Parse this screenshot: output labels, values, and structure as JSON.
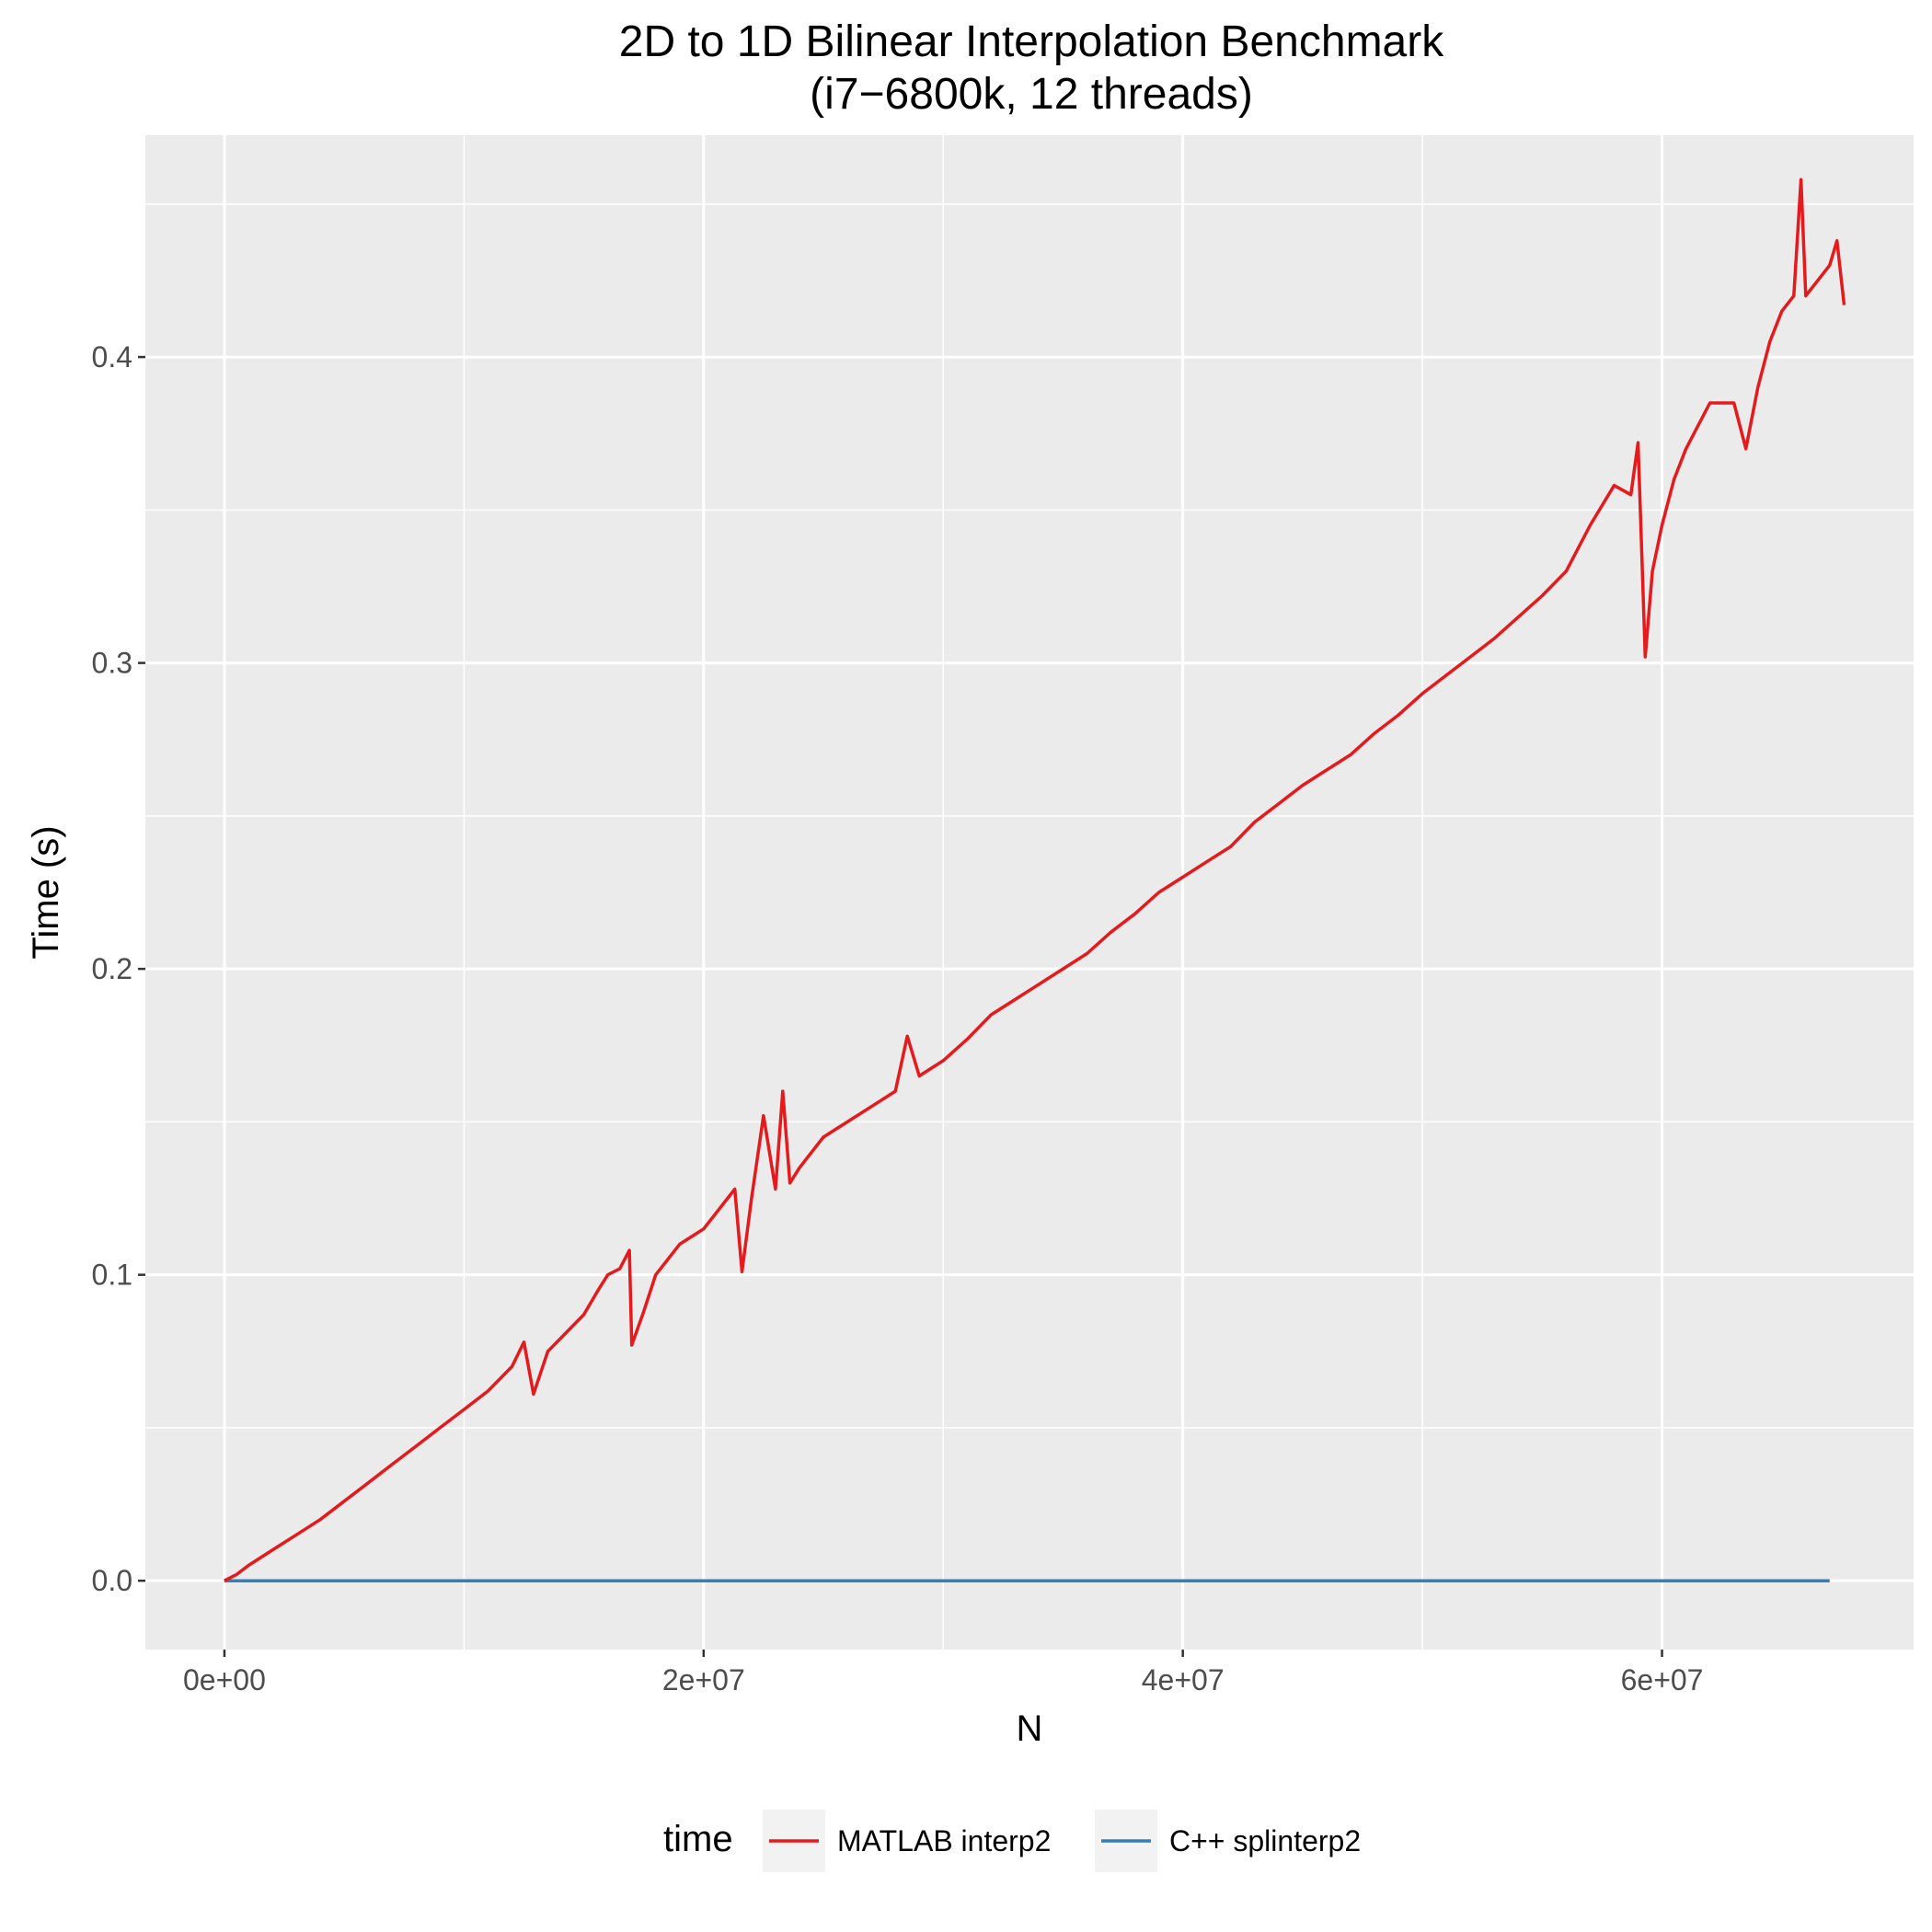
{
  "chart_data": {
    "type": "line",
    "title": "2D to 1D Bilinear Interpolation Benchmark",
    "subtitle": "(i7−6800k, 12 threads)",
    "xlabel": "N",
    "ylabel": "Time (s)",
    "xlim": [
      -3300000,
      70500000
    ],
    "ylim": [
      -0.0225,
      0.4725
    ],
    "x_ticks": [
      {
        "value": 0,
        "label": "0e+00"
      },
      {
        "value": 20000000,
        "label": "2e+07"
      },
      {
        "value": 40000000,
        "label": "4e+07"
      },
      {
        "value": 60000000,
        "label": "6e+07"
      }
    ],
    "y_ticks": [
      {
        "value": 0.0,
        "label": "0.0"
      },
      {
        "value": 0.1,
        "label": "0.1"
      },
      {
        "value": 0.2,
        "label": "0.2"
      },
      {
        "value": 0.3,
        "label": "0.3"
      },
      {
        "value": 0.4,
        "label": "0.4"
      }
    ],
    "grid": true,
    "legend": {
      "title": "time",
      "position": "bottom"
    },
    "series": [
      {
        "name": "MATLAB interp2",
        "color": "#e41a1c",
        "x": [
          0,
          500000,
          1000000,
          2000000,
          3000000,
          4000000,
          5000000,
          6000000,
          7000000,
          8000000,
          9000000,
          10000000,
          11000000,
          12000000,
          12500000,
          12900000,
          13500000,
          14000000,
          15000000,
          15600000,
          16000000,
          16500000,
          16900000,
          17000000,
          17500000,
          18000000,
          19000000,
          20000000,
          21000000,
          21300000,
          21600000,
          22000000,
          22500000,
          23000000,
          23300000,
          23600000,
          24000000,
          25000000,
          26000000,
          27000000,
          28000000,
          28500000,
          29000000,
          30000000,
          31000000,
          32000000,
          33000000,
          34000000,
          35000000,
          36000000,
          37000000,
          38000000,
          39000000,
          40000000,
          41000000,
          42000000,
          43000000,
          44000000,
          45000000,
          46000000,
          47000000,
          48000000,
          49000000,
          50000000,
          51000000,
          52000000,
          53000000,
          54000000,
          55000000,
          56000000,
          57000000,
          58000000,
          58700000,
          59000000,
          59300000,
          59600000,
          60000000,
          60500000,
          61000000,
          62000000,
          63000000,
          63500000,
          64000000,
          64500000,
          65000000,
          65500000,
          65800000,
          66000000,
          66500000,
          67000000,
          67300000,
          67600000
        ],
        "y": [
          0.0,
          0.002,
          0.005,
          0.01,
          0.015,
          0.02,
          0.026,
          0.032,
          0.038,
          0.044,
          0.05,
          0.056,
          0.062,
          0.07,
          0.078,
          0.061,
          0.075,
          0.079,
          0.087,
          0.095,
          0.1,
          0.102,
          0.108,
          0.077,
          0.088,
          0.1,
          0.11,
          0.115,
          0.125,
          0.128,
          0.101,
          0.125,
          0.152,
          0.128,
          0.16,
          0.13,
          0.135,
          0.145,
          0.15,
          0.155,
          0.16,
          0.178,
          0.165,
          0.17,
          0.177,
          0.185,
          0.19,
          0.195,
          0.2,
          0.205,
          0.212,
          0.218,
          0.225,
          0.23,
          0.235,
          0.24,
          0.248,
          0.254,
          0.26,
          0.265,
          0.27,
          0.277,
          0.283,
          0.29,
          0.296,
          0.302,
          0.308,
          0.315,
          0.322,
          0.33,
          0.345,
          0.358,
          0.355,
          0.372,
          0.302,
          0.33,
          0.345,
          0.36,
          0.37,
          0.385,
          0.385,
          0.37,
          0.39,
          0.405,
          0.415,
          0.42,
          0.458,
          0.42,
          0.425,
          0.43,
          0.438,
          0.417
        ]
      },
      {
        "name": "C++ splinterp2",
        "color": "#377eb8",
        "x": [
          0,
          10000000,
          20000000,
          30000000,
          40000000,
          50000000,
          60000000,
          67000000
        ],
        "y": [
          0,
          0,
          0,
          0,
          0,
          0,
          0,
          0
        ]
      }
    ]
  }
}
